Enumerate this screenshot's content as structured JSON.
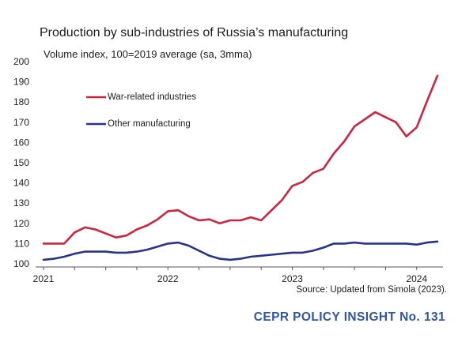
{
  "chart_data": {
    "type": "line",
    "title": "Production by sub-industries of Russia’s manufacturing",
    "subtitle": "Volume index, 100=2019 average (sa, 3mma)",
    "x": [
      "2021-01",
      "2021-02",
      "2021-03",
      "2021-04",
      "2021-05",
      "2021-06",
      "2021-07",
      "2021-08",
      "2021-09",
      "2021-10",
      "2021-11",
      "2021-12",
      "2022-01",
      "2022-02",
      "2022-03",
      "2022-04",
      "2022-05",
      "2022-06",
      "2022-07",
      "2022-08",
      "2022-09",
      "2022-10",
      "2022-11",
      "2022-12",
      "2023-01",
      "2023-02",
      "2023-03",
      "2023-04",
      "2023-05",
      "2023-06",
      "2023-07",
      "2023-08",
      "2023-09",
      "2023-10",
      "2023-11",
      "2023-12",
      "2024-01",
      "2024-02",
      "2024-03"
    ],
    "x_tick_labels": [
      "2021",
      "2022",
      "2023",
      "2024"
    ],
    "y_ticks": [
      100,
      110,
      120,
      130,
      140,
      150,
      160,
      170,
      180,
      190,
      200
    ],
    "ylim": [
      100,
      200
    ],
    "grid": false,
    "legend_position": "upper-left",
    "series": [
      {
        "name": "War-related industries",
        "color": "#d0233f",
        "values": [
          110,
          110,
          110,
          115.5,
          118,
          117,
          115,
          113,
          114,
          117,
          119,
          122,
          126,
          126.5,
          123.5,
          121.5,
          122,
          120,
          121.5,
          121.5,
          123,
          121.5,
          126.5,
          131.5,
          138.5,
          140.5,
          145,
          147,
          154.5,
          160.5,
          168,
          171.5,
          175,
          172.5,
          170,
          163,
          167.5,
          180.5,
          193
        ]
      },
      {
        "name": "Other manufacturing",
        "color": "#28338f",
        "values": [
          102,
          102.5,
          103.5,
          105,
          106,
          106,
          106,
          105.5,
          105.5,
          106,
          107,
          108.5,
          110,
          110.5,
          109,
          106.5,
          104,
          102.5,
          102,
          102.5,
          103.5,
          104,
          104.5,
          105,
          105.5,
          105.5,
          106.5,
          108,
          110,
          110,
          110.5,
          110,
          110,
          110,
          110,
          110,
          109.5,
          110.5,
          111
        ]
      }
    ],
    "source": "Source: Updated from Simola (2023)."
  },
  "publication": "CEPR POLICY INSIGHT No. 131",
  "brand_color": "#2e56a3"
}
